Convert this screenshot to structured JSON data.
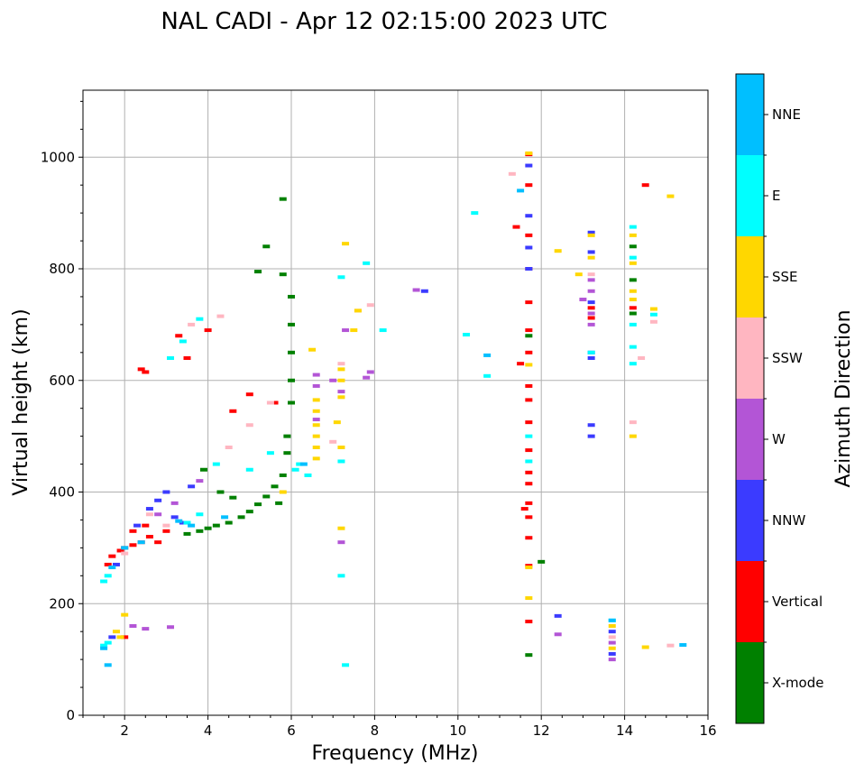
{
  "chart_data": {
    "type": "scatter",
    "title": "NAL CADI - Apr 12 02:15:00 2023 UTC",
    "xlabel": "Frequency (MHz)",
    "ylabel": "Virtual height (km)",
    "xlim": [
      1,
      16
    ],
    "ylim": [
      0,
      1120
    ],
    "xticks": [
      "2",
      "4",
      "6",
      "8",
      "10",
      "12",
      "14",
      "16"
    ],
    "yticks": [
      "0",
      "200",
      "400",
      "600",
      "800",
      "1000"
    ],
    "grid": true,
    "colorbar": {
      "label": "Azimuth Direction",
      "categories": [
        {
          "name": "X-mode",
          "color": "#008000"
        },
        {
          "name": "Vertical",
          "color": "#ff0000"
        },
        {
          "name": "NNW",
          "color": "#3b3bff"
        },
        {
          "name": "W",
          "color": "#b355d6"
        },
        {
          "name": "SSW",
          "color": "#ffb6c1"
        },
        {
          "name": "SSE",
          "color": "#ffd700"
        },
        {
          "name": "E",
          "color": "#00ffff"
        },
        {
          "name": "NNE",
          "color": "#00bfff"
        }
      ]
    },
    "series": [
      {
        "name": "X-mode",
        "points": [
          [
            3.5,
            325
          ],
          [
            3.8,
            330
          ],
          [
            4.0,
            335
          ],
          [
            4.2,
            340
          ],
          [
            4.5,
            345
          ],
          [
            4.8,
            355
          ],
          [
            5.0,
            365
          ],
          [
            5.2,
            378
          ],
          [
            5.4,
            392
          ],
          [
            5.6,
            410
          ],
          [
            5.8,
            430
          ],
          [
            5.9,
            470
          ],
          [
            5.9,
            500
          ],
          [
            6.0,
            560
          ],
          [
            6.0,
            600
          ],
          [
            6.0,
            650
          ],
          [
            6.0,
            700
          ],
          [
            6.0,
            750
          ],
          [
            5.8,
            790
          ],
          [
            5.4,
            840
          ],
          [
            5.2,
            795
          ],
          [
            5.8,
            925
          ],
          [
            5.7,
            380
          ],
          [
            4.6,
            390
          ],
          [
            4.3,
            400
          ],
          [
            3.9,
            440
          ],
          [
            11.7,
            680
          ],
          [
            11.7,
            108
          ],
          [
            12.0,
            275
          ],
          [
            14.2,
            720
          ],
          [
            14.2,
            840
          ],
          [
            14.2,
            780
          ]
        ]
      },
      {
        "name": "Vertical",
        "points": [
          [
            1.6,
            270
          ],
          [
            1.7,
            285
          ],
          [
            1.9,
            295
          ],
          [
            2.0,
            300
          ],
          [
            2.2,
            305
          ],
          [
            2.4,
            310
          ],
          [
            2.6,
            320
          ],
          [
            2.8,
            310
          ],
          [
            3.0,
            330
          ],
          [
            2.2,
            330
          ],
          [
            2.5,
            340
          ],
          [
            2.5,
            615
          ],
          [
            2.4,
            620
          ],
          [
            3.3,
            680
          ],
          [
            3.5,
            640
          ],
          [
            4.0,
            690
          ],
          [
            4.6,
            545
          ],
          [
            5.6,
            560
          ],
          [
            5.0,
            575
          ],
          [
            2.0,
            140
          ],
          [
            11.7,
            1005
          ],
          [
            11.7,
            950
          ],
          [
            11.7,
            860
          ],
          [
            11.7,
            800
          ],
          [
            11.7,
            740
          ],
          [
            11.7,
            690
          ],
          [
            11.7,
            650
          ],
          [
            11.7,
            590
          ],
          [
            11.7,
            565
          ],
          [
            11.7,
            525
          ],
          [
            11.7,
            475
          ],
          [
            11.7,
            435
          ],
          [
            11.7,
            415
          ],
          [
            11.7,
            380
          ],
          [
            11.7,
            355
          ],
          [
            11.7,
            318
          ],
          [
            11.7,
            268
          ],
          [
            11.7,
            168
          ],
          [
            11.5,
            630
          ],
          [
            11.4,
            875
          ],
          [
            11.6,
            370
          ],
          [
            13.2,
            712
          ],
          [
            13.2,
            730
          ],
          [
            14.5,
            950
          ],
          [
            14.2,
            730
          ]
        ]
      },
      {
        "name": "NNW",
        "points": [
          [
            1.8,
            270
          ],
          [
            2.6,
            370
          ],
          [
            2.8,
            385
          ],
          [
            3.2,
            355
          ],
          [
            3.4,
            345
          ],
          [
            3.6,
            410
          ],
          [
            3.0,
            400
          ],
          [
            2.3,
            340
          ],
          [
            1.7,
            140
          ],
          [
            11.7,
            985
          ],
          [
            11.7,
            895
          ],
          [
            11.7,
            838
          ],
          [
            11.7,
            800
          ],
          [
            13.2,
            865
          ],
          [
            13.2,
            830
          ],
          [
            13.2,
            740
          ],
          [
            13.2,
            650
          ],
          [
            13.2,
            640
          ],
          [
            13.2,
            520
          ],
          [
            13.2,
            500
          ],
          [
            12.4,
            178
          ],
          [
            9.2,
            760
          ],
          [
            13.7,
            150
          ],
          [
            13.7,
            110
          ]
        ]
      },
      {
        "name": "W",
        "points": [
          [
            2.2,
            160
          ],
          [
            2.5,
            155
          ],
          [
            3.1,
            158
          ],
          [
            2.8,
            360
          ],
          [
            3.2,
            380
          ],
          [
            3.8,
            420
          ],
          [
            6.6,
            610
          ],
          [
            6.6,
            590
          ],
          [
            6.6,
            530
          ],
          [
            7.0,
            600
          ],
          [
            7.2,
            580
          ],
          [
            7.3,
            690
          ],
          [
            7.8,
            605
          ],
          [
            7.9,
            615
          ],
          [
            9.0,
            762
          ],
          [
            12.4,
            145
          ],
          [
            13.2,
            780
          ],
          [
            13.2,
            760
          ],
          [
            13.2,
            700
          ],
          [
            13.2,
            720
          ],
          [
            13.0,
            745
          ],
          [
            13.7,
            130
          ],
          [
            13.7,
            100
          ],
          [
            7.2,
            310
          ]
        ]
      },
      {
        "name": "SSW",
        "points": [
          [
            2.0,
            290
          ],
          [
            2.6,
            360
          ],
          [
            3.0,
            340
          ],
          [
            3.6,
            700
          ],
          [
            4.3,
            715
          ],
          [
            4.5,
            480
          ],
          [
            5.0,
            520
          ],
          [
            5.5,
            560
          ],
          [
            7.2,
            630
          ],
          [
            7.6,
            725
          ],
          [
            7.9,
            735
          ],
          [
            11.3,
            970
          ],
          [
            14.2,
            525
          ],
          [
            14.4,
            640
          ],
          [
            14.7,
            705
          ],
          [
            15.1,
            125
          ],
          [
            13.2,
            790
          ],
          [
            13.7,
            140
          ],
          [
            7.0,
            490
          ]
        ]
      },
      {
        "name": "SSE",
        "points": [
          [
            1.8,
            150
          ],
          [
            2.0,
            180
          ],
          [
            1.9,
            140
          ],
          [
            6.6,
            565
          ],
          [
            6.6,
            545
          ],
          [
            6.6,
            520
          ],
          [
            6.6,
            500
          ],
          [
            6.6,
            480
          ],
          [
            6.6,
            460
          ],
          [
            6.5,
            655
          ],
          [
            7.2,
            620
          ],
          [
            7.2,
            600
          ],
          [
            7.2,
            570
          ],
          [
            7.2,
            480
          ],
          [
            7.2,
            335
          ],
          [
            7.1,
            525
          ],
          [
            7.3,
            845
          ],
          [
            7.5,
            690
          ],
          [
            7.6,
            725
          ],
          [
            11.7,
            1007
          ],
          [
            11.7,
            628
          ],
          [
            11.7,
            265
          ],
          [
            11.7,
            210
          ],
          [
            12.4,
            832
          ],
          [
            12.9,
            790
          ],
          [
            13.2,
            860
          ],
          [
            13.2,
            820
          ],
          [
            14.2,
            860
          ],
          [
            14.2,
            810
          ],
          [
            14.2,
            760
          ],
          [
            14.2,
            745
          ],
          [
            14.2,
            500
          ],
          [
            14.5,
            122
          ],
          [
            14.7,
            728
          ],
          [
            15.1,
            930
          ],
          [
            13.7,
            160
          ],
          [
            13.7,
            120
          ],
          [
            5.8,
            400
          ]
        ]
      },
      {
        "name": "E",
        "points": [
          [
            1.5,
            240
          ],
          [
            1.6,
            250
          ],
          [
            1.5,
            125
          ],
          [
            1.6,
            130
          ],
          [
            3.1,
            640
          ],
          [
            3.4,
            670
          ],
          [
            3.8,
            710
          ],
          [
            4.2,
            450
          ],
          [
            5.0,
            440
          ],
          [
            5.5,
            470
          ],
          [
            6.1,
            440
          ],
          [
            6.2,
            450
          ],
          [
            6.4,
            430
          ],
          [
            7.2,
            785
          ],
          [
            7.2,
            455
          ],
          [
            7.2,
            250
          ],
          [
            7.3,
            90
          ],
          [
            7.8,
            810
          ],
          [
            8.2,
            690
          ],
          [
            10.2,
            682
          ],
          [
            10.4,
            900
          ],
          [
            10.7,
            608
          ],
          [
            11.7,
            500
          ],
          [
            11.7,
            455
          ],
          [
            13.2,
            650
          ],
          [
            13.7,
            170
          ],
          [
            14.2,
            875
          ],
          [
            14.2,
            820
          ],
          [
            14.2,
            700
          ],
          [
            14.2,
            660
          ],
          [
            14.2,
            630
          ],
          [
            14.7,
            718
          ],
          [
            3.5,
            345
          ],
          [
            3.8,
            360
          ]
        ]
      },
      {
        "name": "NNE",
        "points": [
          [
            1.5,
            120
          ],
          [
            1.6,
            90
          ],
          [
            1.7,
            265
          ],
          [
            2.0,
            300
          ],
          [
            2.4,
            310
          ],
          [
            3.3,
            348
          ],
          [
            3.6,
            340
          ],
          [
            4.4,
            355
          ],
          [
            10.7,
            645
          ],
          [
            11.5,
            940
          ],
          [
            15.4,
            126
          ],
          [
            13.7,
            170
          ],
          [
            6.3,
            450
          ]
        ]
      }
    ]
  }
}
